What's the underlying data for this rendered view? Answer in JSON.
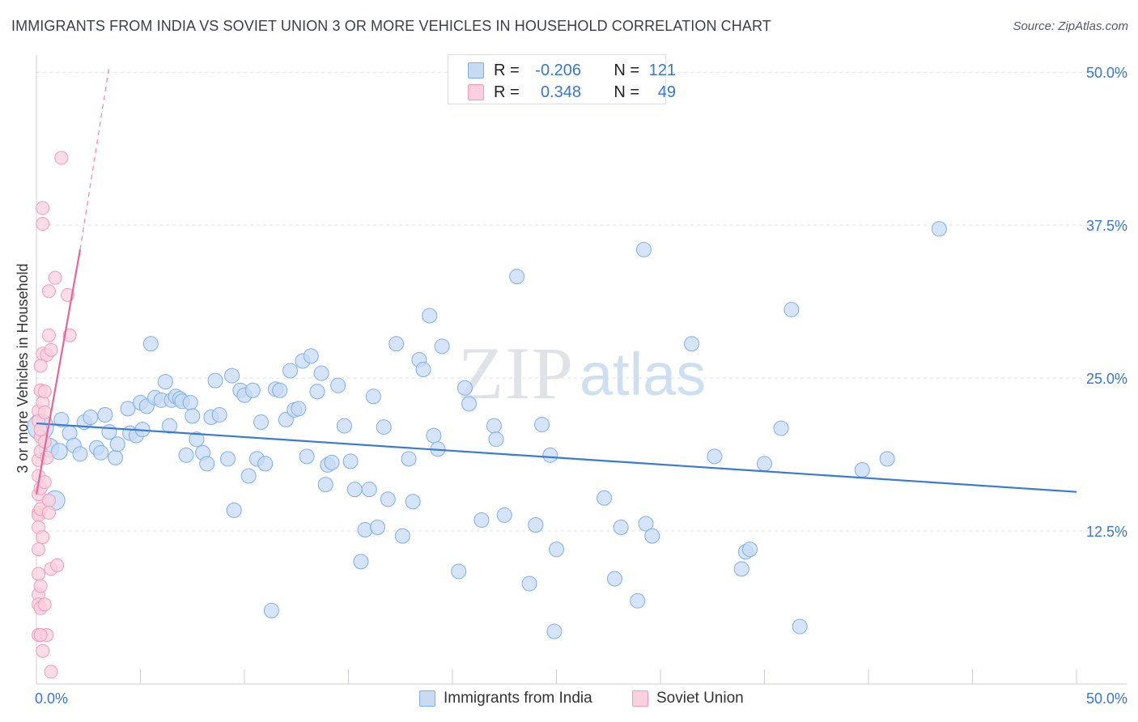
{
  "header": {
    "title": "IMMIGRANTS FROM INDIA VS SOVIET UNION 3 OR MORE VEHICLES IN HOUSEHOLD CORRELATION CHART",
    "source": "Source: ZipAtlas.com"
  },
  "watermark": {
    "zip": "ZIP",
    "atlas": "atlas"
  },
  "legend_top": {
    "rows": [
      {
        "r_label": "R =",
        "r_value": "-0.206",
        "n_label": "N =",
        "n_value": "121",
        "color": "#7eaee8"
      },
      {
        "r_label": "R =",
        "r_value": "0.348",
        "n_label": "N =",
        "n_value": "49",
        "color": "#f19bb8"
      }
    ]
  },
  "bottom_legend": {
    "series1": "Immigrants from India",
    "series2": "Soviet Union"
  },
  "chart_data": {
    "type": "scatter",
    "title": "IMMIGRANTS FROM INDIA VS SOVIET UNION 3 OR MORE VEHICLES IN HOUSEHOLD CORRELATION CHART",
    "xlabel": "",
    "ylabel": "3 or more Vehicles in Household",
    "xlim": [
      0,
      50
    ],
    "ylim": [
      0,
      52
    ],
    "x_tick_labels": [
      "0.0%",
      "50.0%"
    ],
    "y_ticks": [
      12.5,
      25.0,
      37.5,
      50.0
    ],
    "y_tick_labels": [
      "12.5%",
      "25.0%",
      "37.5%",
      "50.0%"
    ],
    "grid": true,
    "legend": "top-center",
    "colors": {
      "india_fill": "#c7dbf5",
      "india_stroke": "#7eaee8",
      "india_line": "#3a7bd0",
      "soviet_fill": "#fbd0de",
      "soviet_stroke": "#f19bb8",
      "soviet_line": "#e5669a",
      "axis_text": "#3877c9",
      "grid": "#dde1e6"
    },
    "series": [
      {
        "name": "Immigrants from India",
        "R": -0.206,
        "N": 121,
        "trend": {
          "x0": 0,
          "y0": 21.3,
          "x1": 50,
          "y1": 15.7
        },
        "points": [
          [
            0.2,
            21.0,
            16
          ],
          [
            0.6,
            19.3,
            12
          ],
          [
            0.9,
            15.0,
            12
          ],
          [
            1.1,
            19.0,
            10
          ],
          [
            1.2,
            21.6,
            9
          ],
          [
            1.6,
            20.5,
            9
          ],
          [
            1.8,
            19.5,
            9
          ],
          [
            2.1,
            18.8,
            9
          ],
          [
            2.3,
            21.4,
            9
          ],
          [
            2.6,
            21.8,
            9
          ],
          [
            2.9,
            19.3,
            9
          ],
          [
            3.1,
            18.9,
            9
          ],
          [
            3.3,
            22.0,
            9
          ],
          [
            3.5,
            20.6,
            9
          ],
          [
            3.8,
            18.5,
            9
          ],
          [
            3.9,
            19.6,
            9
          ],
          [
            4.4,
            22.5,
            9
          ],
          [
            4.5,
            20.5,
            9
          ],
          [
            4.8,
            20.3,
            9
          ],
          [
            5.0,
            23.0,
            9
          ],
          [
            5.1,
            20.8,
            9
          ],
          [
            5.3,
            22.7,
            9
          ],
          [
            5.5,
            27.8,
            9
          ],
          [
            5.7,
            23.4,
            9
          ],
          [
            6.0,
            23.2,
            9
          ],
          [
            6.2,
            24.7,
            9
          ],
          [
            6.4,
            21.1,
            9
          ],
          [
            6.5,
            23.2,
            9
          ],
          [
            6.7,
            23.5,
            9
          ],
          [
            6.9,
            23.3,
            9
          ],
          [
            7.0,
            23.1,
            9
          ],
          [
            7.2,
            18.7,
            9
          ],
          [
            7.4,
            23.0,
            9
          ],
          [
            7.5,
            21.9,
            9
          ],
          [
            7.7,
            20.0,
            9
          ],
          [
            8.0,
            18.9,
            9
          ],
          [
            8.2,
            18.0,
            9
          ],
          [
            8.4,
            21.8,
            9
          ],
          [
            8.6,
            24.8,
            9
          ],
          [
            8.8,
            22.0,
            9
          ],
          [
            9.2,
            18.4,
            9
          ],
          [
            9.4,
            25.2,
            9
          ],
          [
            9.5,
            14.2,
            9
          ],
          [
            9.8,
            24.0,
            9
          ],
          [
            10.0,
            23.6,
            9
          ],
          [
            10.2,
            17.0,
            9
          ],
          [
            10.4,
            24.0,
            9
          ],
          [
            10.6,
            18.4,
            9
          ],
          [
            10.8,
            21.4,
            9
          ],
          [
            11.0,
            18.0,
            9
          ],
          [
            11.3,
            6.0,
            9
          ],
          [
            11.5,
            24.1,
            9
          ],
          [
            11.7,
            24.0,
            9
          ],
          [
            12.0,
            21.6,
            9
          ],
          [
            12.2,
            25.6,
            9
          ],
          [
            12.4,
            22.4,
            9
          ],
          [
            12.6,
            22.5,
            9
          ],
          [
            12.8,
            26.4,
            9
          ],
          [
            13.0,
            18.6,
            9
          ],
          [
            13.2,
            26.8,
            9
          ],
          [
            13.5,
            23.9,
            9
          ],
          [
            13.7,
            25.4,
            9
          ],
          [
            13.9,
            16.3,
            9
          ],
          [
            14.0,
            17.9,
            9
          ],
          [
            14.2,
            18.1,
            9
          ],
          [
            14.5,
            24.4,
            9
          ],
          [
            14.8,
            21.1,
            9
          ],
          [
            15.1,
            18.2,
            9
          ],
          [
            15.3,
            15.9,
            9
          ],
          [
            15.6,
            10.0,
            9
          ],
          [
            15.8,
            12.6,
            9
          ],
          [
            16.0,
            15.9,
            9
          ],
          [
            16.2,
            23.5,
            9
          ],
          [
            16.4,
            12.8,
            9
          ],
          [
            16.7,
            21.0,
            9
          ],
          [
            16.9,
            15.1,
            9
          ],
          [
            17.3,
            27.8,
            9
          ],
          [
            17.6,
            12.1,
            9
          ],
          [
            17.9,
            18.4,
            9
          ],
          [
            18.1,
            14.9,
            9
          ],
          [
            18.4,
            26.5,
            9
          ],
          [
            18.6,
            25.7,
            9
          ],
          [
            18.9,
            30.1,
            9
          ],
          [
            19.1,
            20.3,
            9
          ],
          [
            19.3,
            19.2,
            9
          ],
          [
            19.5,
            27.6,
            9
          ],
          [
            20.3,
            9.2,
            9
          ],
          [
            20.6,
            24.2,
            9
          ],
          [
            20.8,
            22.9,
            9
          ],
          [
            21.4,
            13.4,
            9
          ],
          [
            22.0,
            21.1,
            9
          ],
          [
            22.1,
            20.0,
            9
          ],
          [
            22.5,
            13.8,
            9
          ],
          [
            23.1,
            33.3,
            9
          ],
          [
            23.7,
            8.2,
            9
          ],
          [
            24.0,
            13.0,
            9
          ],
          [
            24.3,
            21.2,
            9
          ],
          [
            24.7,
            18.7,
            9
          ],
          [
            24.9,
            4.3,
            9
          ],
          [
            25.0,
            11.0,
            9
          ],
          [
            27.3,
            15.2,
            9
          ],
          [
            27.8,
            8.6,
            9
          ],
          [
            28.1,
            12.8,
            9
          ],
          [
            28.9,
            6.8,
            9
          ],
          [
            29.2,
            35.5,
            9
          ],
          [
            29.3,
            13.1,
            9
          ],
          [
            29.6,
            12.1,
            9
          ],
          [
            31.5,
            27.8,
            9
          ],
          [
            32.6,
            18.6,
            9
          ],
          [
            33.9,
            9.4,
            9
          ],
          [
            34.1,
            10.8,
            9
          ],
          [
            34.3,
            11.0,
            9
          ],
          [
            35.0,
            18.0,
            9
          ],
          [
            35.8,
            20.9,
            9
          ],
          [
            36.3,
            30.6,
            9
          ],
          [
            36.7,
            4.7,
            9
          ],
          [
            39.7,
            17.5,
            9
          ],
          [
            40.9,
            18.4,
            9
          ],
          [
            43.4,
            37.2,
            9
          ]
        ]
      },
      {
        "name": "Soviet Union",
        "R": 0.348,
        "N": 49,
        "trend": {
          "x0": 0,
          "y0": 15.5,
          "x1": 2.1,
          "y1": 35.5
        },
        "trend_extension": {
          "x0": 2.1,
          "y0": 35.5,
          "x1": 3.5,
          "y1": 50.5
        },
        "points": [
          [
            0.1,
            22.3,
            8
          ],
          [
            0.1,
            21.5,
            8
          ],
          [
            0.1,
            18.3,
            8
          ],
          [
            0.1,
            17.0,
            8
          ],
          [
            0.1,
            15.5,
            8
          ],
          [
            0.1,
            14.0,
            8
          ],
          [
            0.1,
            13.8,
            8
          ],
          [
            0.1,
            12.8,
            8
          ],
          [
            0.1,
            9.0,
            8
          ],
          [
            0.1,
            7.3,
            8
          ],
          [
            0.1,
            6.5,
            8
          ],
          [
            0.1,
            4.0,
            8
          ],
          [
            0.2,
            26.0,
            8
          ],
          [
            0.2,
            24.0,
            8
          ],
          [
            0.2,
            20.2,
            8
          ],
          [
            0.2,
            19.0,
            8
          ],
          [
            0.2,
            16.0,
            8
          ],
          [
            0.2,
            14.3,
            8
          ],
          [
            0.2,
            8.0,
            8
          ],
          [
            0.2,
            6.2,
            8
          ],
          [
            0.3,
            38.9,
            8
          ],
          [
            0.3,
            37.6,
            8
          ],
          [
            0.3,
            27.0,
            8
          ],
          [
            0.3,
            23.0,
            8
          ],
          [
            0.3,
            2.7,
            8
          ],
          [
            0.4,
            23.9,
            8
          ],
          [
            0.4,
            22.2,
            8
          ],
          [
            0.4,
            19.8,
            8
          ],
          [
            0.4,
            6.5,
            8
          ],
          [
            0.5,
            26.9,
            8
          ],
          [
            0.5,
            18.5,
            8
          ],
          [
            0.5,
            4.0,
            8
          ],
          [
            0.6,
            32.1,
            8
          ],
          [
            0.6,
            28.5,
            8
          ],
          [
            0.6,
            15.0,
            8
          ],
          [
            0.6,
            14.0,
            8
          ],
          [
            0.7,
            27.3,
            8
          ],
          [
            0.7,
            9.4,
            8
          ],
          [
            0.7,
            1.0,
            8
          ],
          [
            0.9,
            33.2,
            8
          ],
          [
            1.0,
            9.7,
            8
          ],
          [
            1.2,
            43.0,
            8
          ],
          [
            1.5,
            31.8,
            8
          ],
          [
            1.6,
            28.5,
            8
          ],
          [
            0.2,
            4.0,
            8
          ],
          [
            0.1,
            11.0,
            8
          ],
          [
            0.3,
            12.0,
            8
          ],
          [
            0.2,
            20.8,
            8
          ],
          [
            0.4,
            16.5,
            8
          ]
        ]
      }
    ]
  }
}
